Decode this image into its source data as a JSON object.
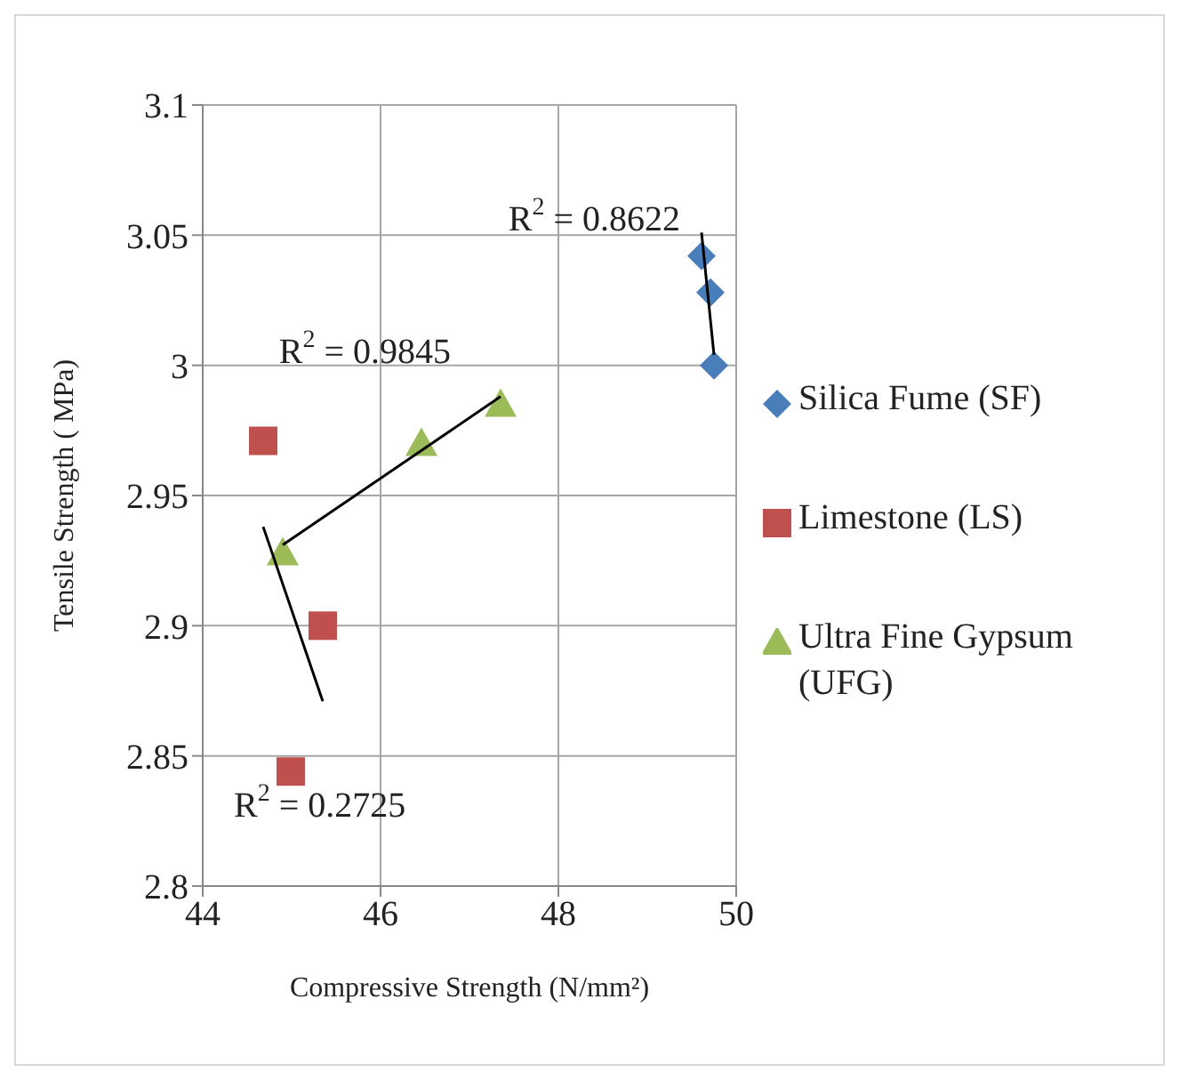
{
  "chart_data": {
    "type": "scatter",
    "xlabel": "Compressive Strength (N/mm²)",
    "ylabel": "Tensile Strength ( MPa)",
    "xlim": [
      44,
      50
    ],
    "xticks": [
      44,
      46,
      48,
      50
    ],
    "ylim": [
      2.8,
      3.1
    ],
    "yticks": [
      2.8,
      2.85,
      2.9,
      2.95,
      3,
      3.05,
      3.1
    ],
    "grid": true,
    "legend": "right",
    "series": [
      {
        "name": "Silica Fume (SF)",
        "color": "#4a7ebb",
        "marker": "diamond",
        "x": [
          49.61,
          49.71,
          49.75
        ],
        "values": [
          3.042,
          3.028,
          3.0
        ]
      },
      {
        "name": "Limestone (LS)",
        "color": "#c0504d",
        "marker": "square",
        "x": [
          44.68,
          45.35,
          44.99
        ],
        "values": [
          2.971,
          2.9,
          2.844
        ]
      },
      {
        "name": "Ultra Fine Gypsum (UFG)",
        "color": "#9bbb59",
        "marker": "triangle",
        "x": [
          44.9,
          46.46,
          47.35
        ],
        "values": [
          2.928,
          2.97,
          2.985
        ]
      },
      {
        "type": "line",
        "color": "#000000",
        "x": [
          49.61,
          49.75
        ],
        "values": [
          3.051,
          3.004
        ]
      },
      {
        "type": "line",
        "color": "#000000",
        "x": [
          44.68,
          45.35
        ],
        "values": [
          2.938,
          2.871
        ]
      },
      {
        "type": "line",
        "color": "#000000",
        "x": [
          44.9,
          47.35
        ],
        "values": [
          2.931,
          2.988
        ]
      }
    ],
    "annotations": [
      "R$^{2}$ = 0.8622",
      "R$^{2}$ = 0.2725",
      "R$^{2}$ = 0.9845"
    ]
  }
}
